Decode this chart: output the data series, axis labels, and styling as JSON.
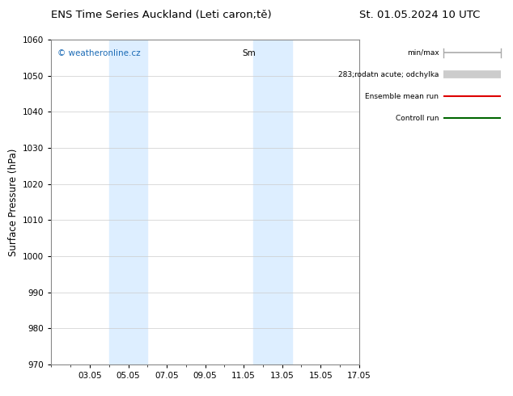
{
  "title_left": "ENS Time Series Auckland (Leti caron;tě)",
  "title_right": "St. 01.05.2024 10 UTC",
  "ylabel": "Surface Pressure (hPa)",
  "ylim": [
    970,
    1060
  ],
  "yticks": [
    970,
    980,
    990,
    1000,
    1010,
    1020,
    1030,
    1040,
    1050,
    1060
  ],
  "xlim": [
    1,
    17
  ],
  "xtick_labels": [
    "03.05",
    "05.05",
    "07.05",
    "09.05",
    "11.05",
    "13.05",
    "15.05",
    "17.05"
  ],
  "xtick_positions": [
    3,
    5,
    7,
    9,
    11,
    13,
    15,
    17
  ],
  "shaded_regions": [
    {
      "start": 4.0,
      "end": 6.0,
      "color": "#ddeeff"
    },
    {
      "start": 11.5,
      "end": 13.5,
      "color": "#ddeeff"
    }
  ],
  "watermark": "© weatheronline.cz",
  "watermark_color": "#1a6ab5",
  "background_color": "#ffffff",
  "grid_color": "#cccccc",
  "tick_label_fontsize": 7.5,
  "axis_label_fontsize": 8.5,
  "title_fontsize": 9.5,
  "sm_label": "Sm",
  "legend_items": [
    {
      "label": "min/max",
      "color": "#aaaaaa",
      "lw": 1.2
    },
    {
      "label": "283;rodatn acute; odchylka",
      "color": "#cccccc",
      "lw": 7
    },
    {
      "label": "Ensemble mean run",
      "color": "#dd0000",
      "lw": 1.5
    },
    {
      "label": "Controll run",
      "color": "#006600",
      "lw": 1.5
    }
  ]
}
